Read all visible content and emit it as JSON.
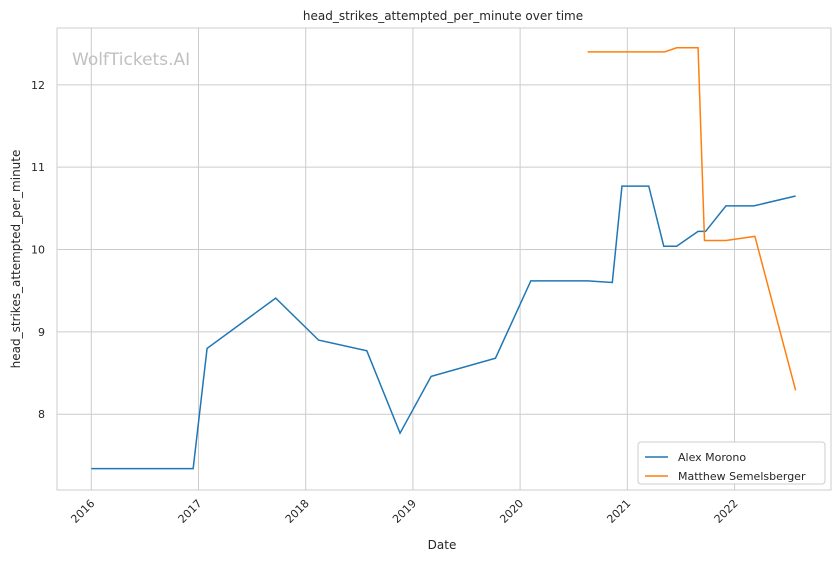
{
  "watermark": "WolfTickets.AI",
  "chart_data": {
    "type": "line",
    "title": "head_strikes_attempted_per_minute over time",
    "xlabel": "Date",
    "ylabel": "head_strikes_attempted_per_minute",
    "xlim": [
      2015.68,
      2022.9
    ],
    "ylim": [
      7.08,
      12.69
    ],
    "xticks": [
      2016,
      2017,
      2018,
      2019,
      2020,
      2021,
      2022
    ],
    "xtick_labels": [
      "2016",
      "2017",
      "2018",
      "2019",
      "2020",
      "2021",
      "2022"
    ],
    "yticks": [
      8,
      9,
      10,
      11,
      12
    ],
    "ytick_labels": [
      "8",
      "9",
      "10",
      "11",
      "12"
    ],
    "grid": true,
    "legend_placement": "lower-right",
    "series": [
      {
        "name": "Alex Morono",
        "color": "#1f77b4",
        "x": [
          2016.0,
          2016.95,
          2017.08,
          2017.72,
          2018.12,
          2018.57,
          2018.88,
          2019.17,
          2019.77,
          2020.1,
          2020.63,
          2020.86,
          2020.95,
          2021.2,
          2021.34,
          2021.46,
          2021.66,
          2021.73,
          2021.92,
          2022.18,
          2022.57
        ],
        "y": [
          7.34,
          7.34,
          8.8,
          9.41,
          8.9,
          8.77,
          7.77,
          8.46,
          8.68,
          9.62,
          9.62,
          9.6,
          10.77,
          10.77,
          10.04,
          10.04,
          10.22,
          10.22,
          10.53,
          10.53,
          10.65
        ]
      },
      {
        "name": "Matthew Semelsberger",
        "color": "#ff7f0e",
        "x": [
          2020.63,
          2021.35,
          2021.46,
          2021.66,
          2021.72,
          2021.92,
          2022.19,
          2022.57
        ],
        "y": [
          12.4,
          12.4,
          12.45,
          12.45,
          10.11,
          10.11,
          10.16,
          8.29
        ]
      }
    ]
  }
}
